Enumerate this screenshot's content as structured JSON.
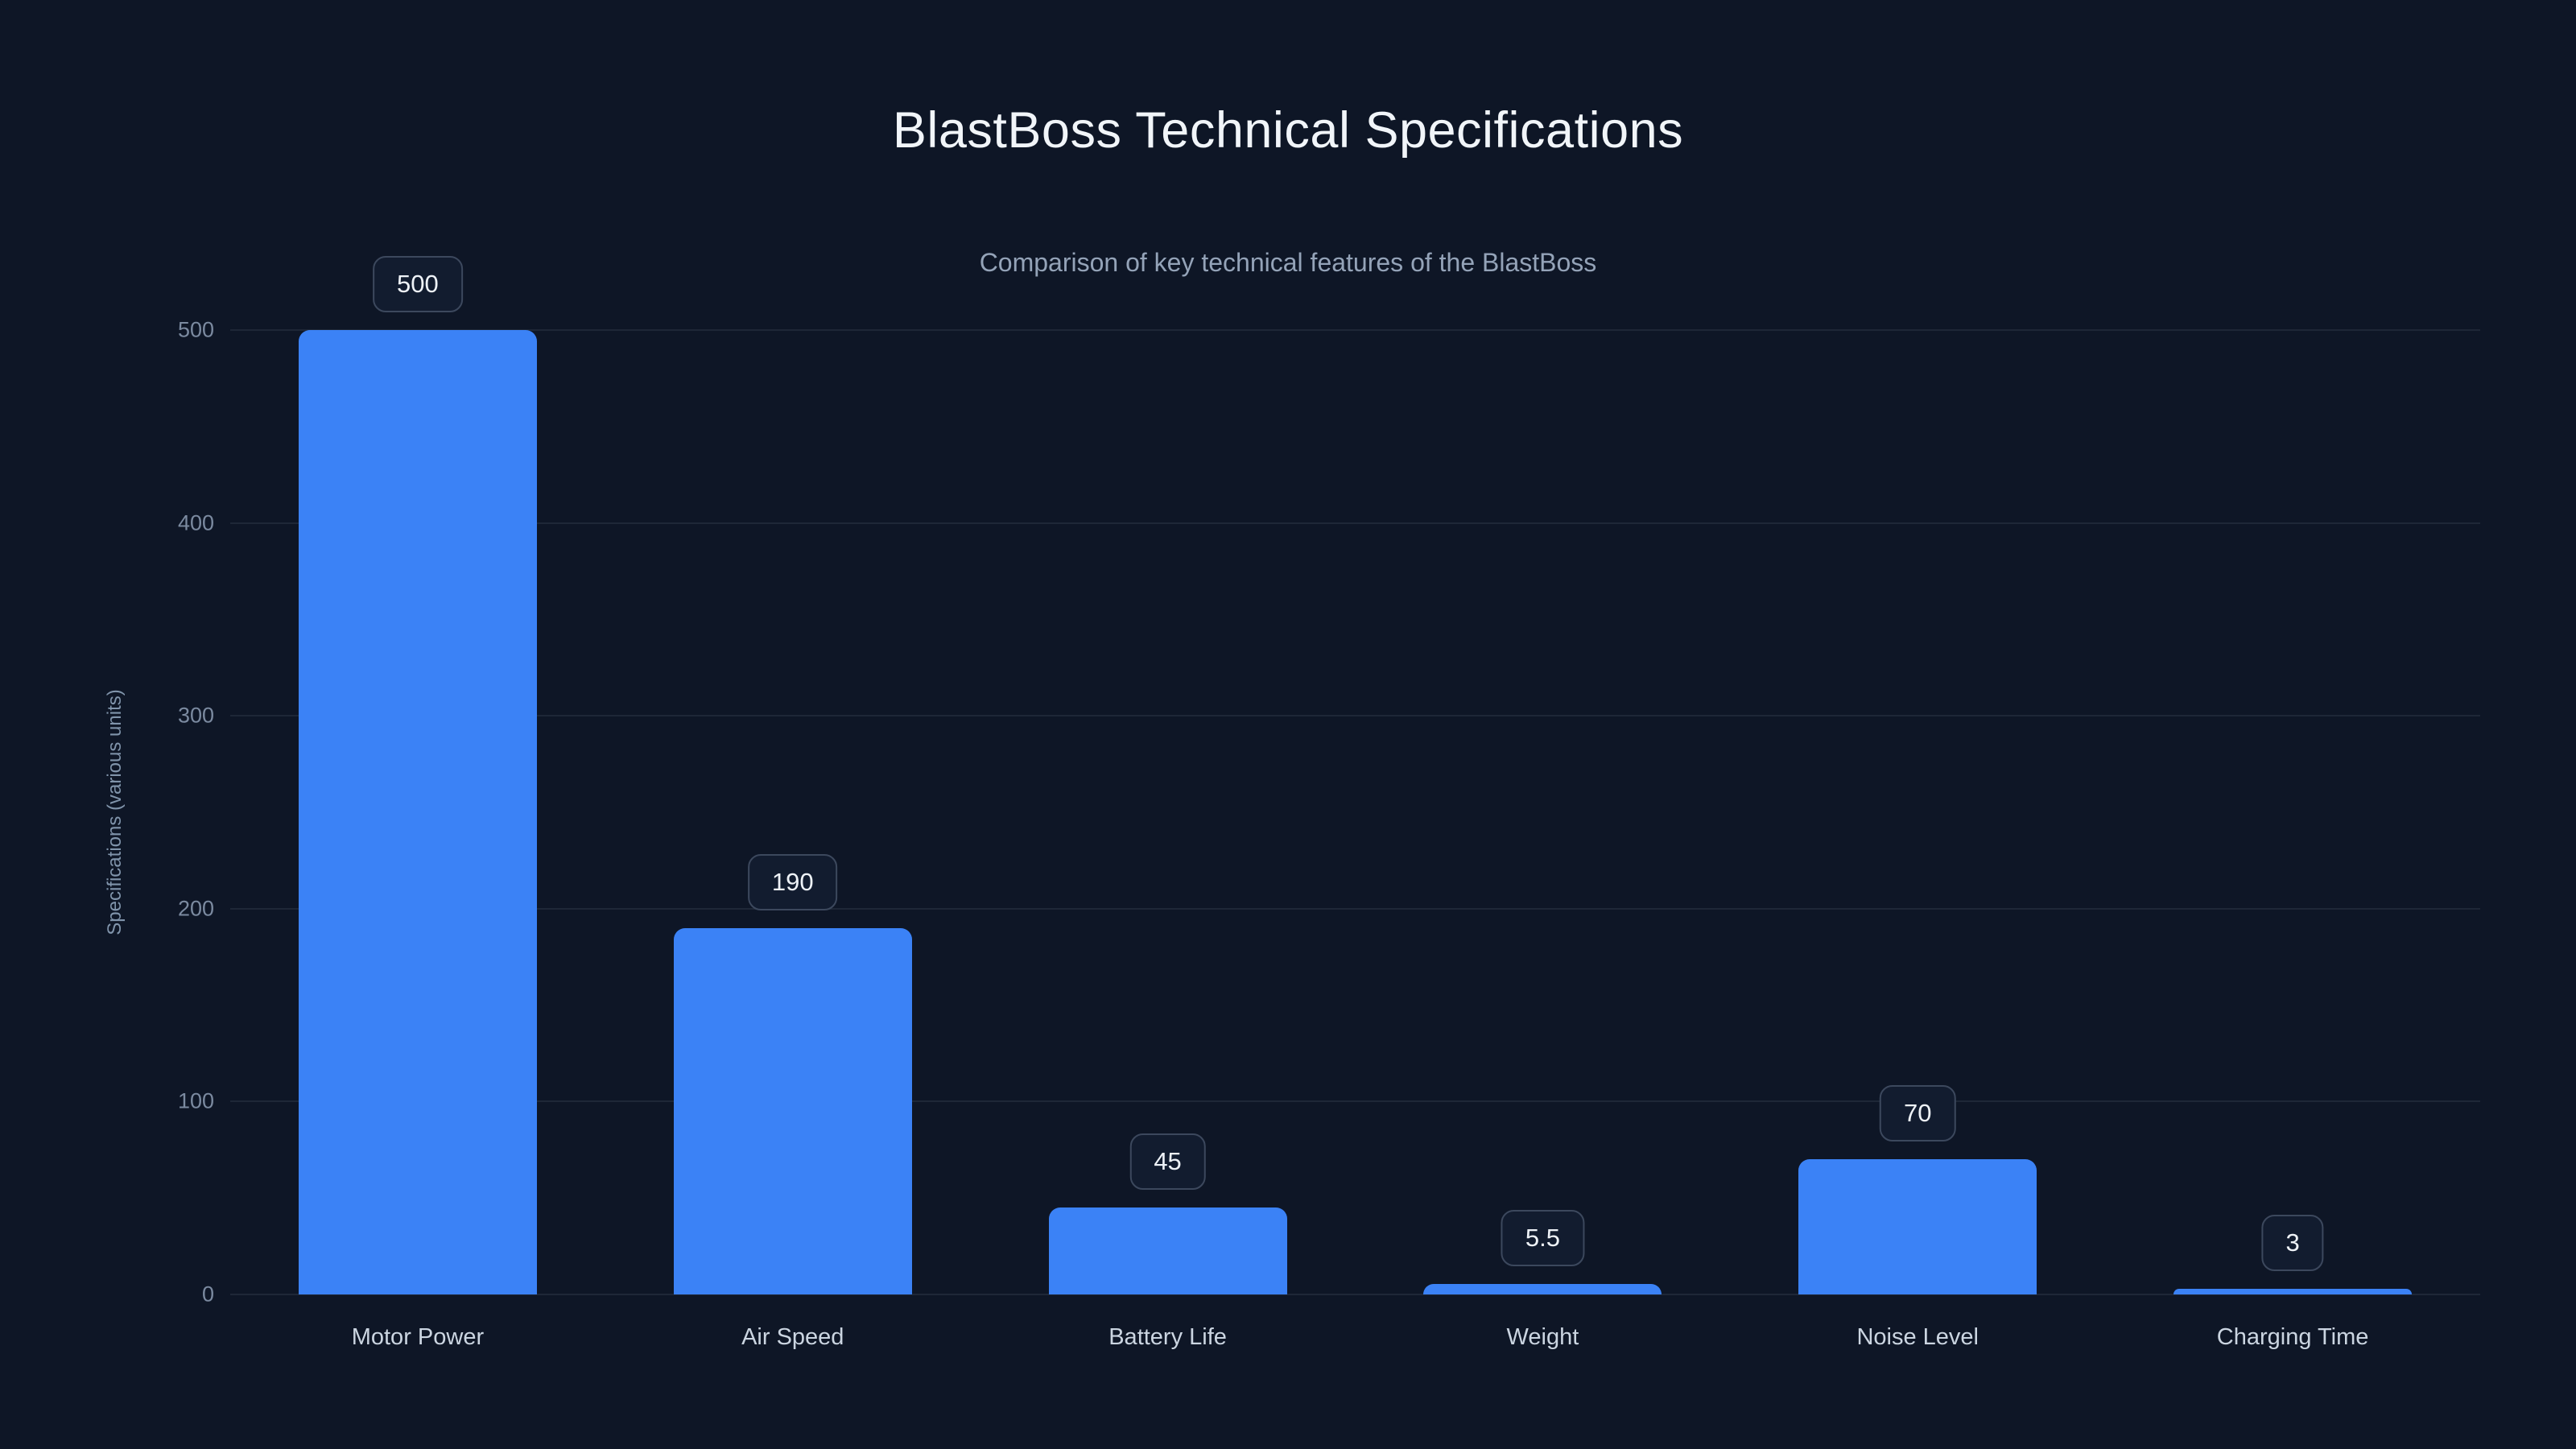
{
  "page": {
    "background_color": "#0e1626",
    "accent_color": "#3b82f6"
  },
  "chart": {
    "title": "BlastBoss Technical Specifications",
    "subtitle": "Comparison of key technical features of the BlastBoss",
    "ylabel": "Specifications (various units)"
  },
  "chart_data": {
    "type": "bar",
    "title": "BlastBoss Technical Specifications",
    "subtitle": "Comparison of key technical features of the BlastBoss",
    "categories": [
      "Motor Power",
      "Air Speed",
      "Battery Life",
      "Weight",
      "Noise Level",
      "Charging Time"
    ],
    "values": [
      500,
      190,
      45,
      5.5,
      70,
      3
    ],
    "value_labels": [
      "500",
      "190",
      "45",
      "5.5",
      "70",
      "3"
    ],
    "xlabel": "",
    "ylabel": "Specifications (various units)",
    "ylim": [
      0,
      500
    ],
    "yticks": [
      0,
      100,
      200,
      300,
      400,
      500
    ],
    "grid": true,
    "legend": false,
    "bar_color": "#3b82f6",
    "gridline_color": "rgba(148,163,184,0.12)"
  }
}
